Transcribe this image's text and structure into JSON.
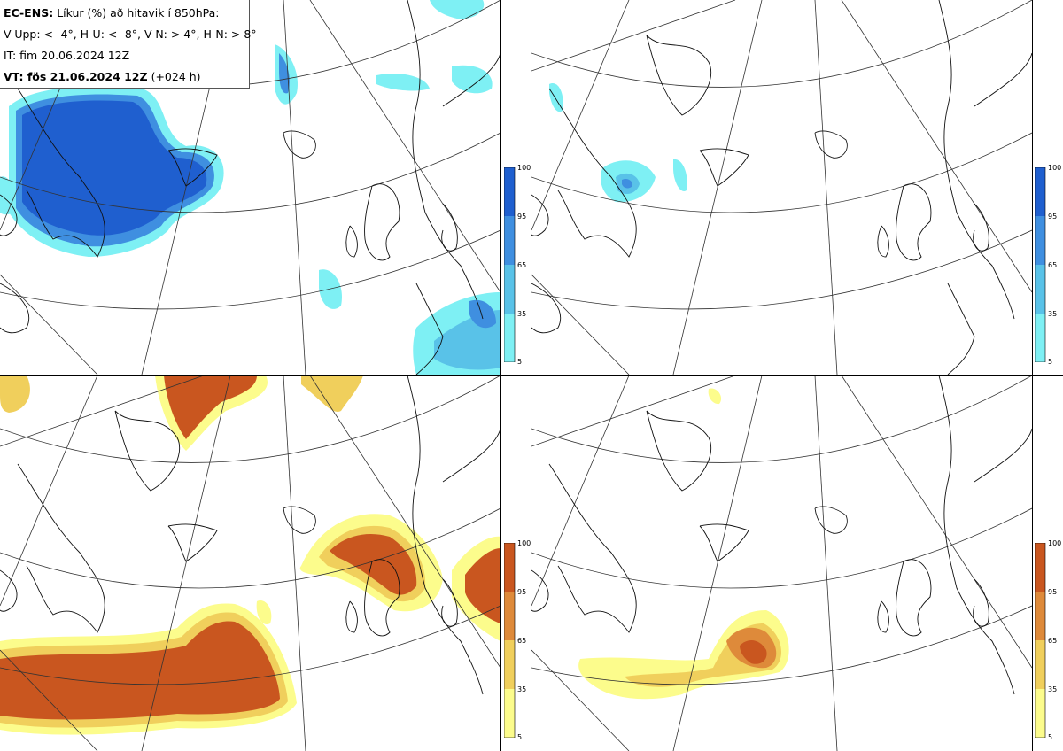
{
  "info": {
    "model": "EC-ENS:",
    "title": "Líkur (%) að hitavik í 850hPa:",
    "thresholds": "V-Upp: < -4°, H-U: < -8°, V-N: > 4°, H-N: > 8°",
    "init_time": "IT: fim 20.06.2024 12Z",
    "valid_label": "VT: fös 21.06.2024 12Z",
    "lead": "(+024 h)"
  },
  "panels": [
    {
      "id": "V-Upp",
      "palette": "blue"
    },
    {
      "id": "H-U",
      "palette": "blue"
    },
    {
      "id": "V-N",
      "palette": "orange"
    },
    {
      "id": "H-N",
      "palette": "orange"
    }
  ],
  "colorbar": {
    "ticks": [
      "100",
      "95",
      "65",
      "35",
      "5"
    ],
    "blue_colors": [
      "#1f5fcf",
      "#3f8fe0",
      "#59c2e8",
      "#7ef0f4"
    ],
    "orange_colors": [
      "#c9561f",
      "#de8a3a",
      "#f0cf5c",
      "#fcfc8c"
    ]
  }
}
